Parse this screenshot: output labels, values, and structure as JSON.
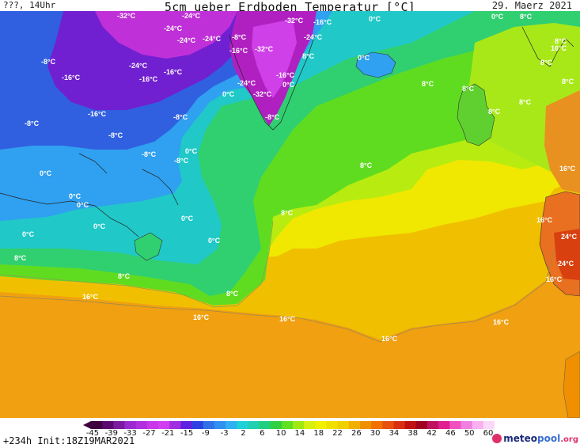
{
  "header": {
    "left": "???, 14Uhr",
    "title": "5cm ueber Erdboden Temperatur [°C]",
    "date": "29. Maerz 2021"
  },
  "footer": {
    "run": "+234h  Init:18Z19MAR2021",
    "logo_main": "meteo",
    "logo_accent": "pool",
    "logo_tld": ".org"
  },
  "colorbar": {
    "ticks": [
      "-45",
      "-39",
      "-33",
      "-27",
      "-21",
      "-15",
      "-9",
      "-3",
      "2",
      "6",
      "10",
      "14",
      "18",
      "22",
      "26",
      "30",
      "34",
      "38",
      "42",
      "46",
      "50",
      "60"
    ],
    "colors": [
      "#400040",
      "#5a0a6e",
      "#7a1a9e",
      "#9a2ad0",
      "#b030e0",
      "#c838e8",
      "#d040f0",
      "#a030e0",
      "#6020e0",
      "#3040e0",
      "#3070e8",
      "#3090f0",
      "#30b0f0",
      "#20d0d8",
      "#20d0b0",
      "#20d080",
      "#30d040",
      "#60e020",
      "#a0e810",
      "#d8f010",
      "#f0f000",
      "#f0e000",
      "#f0d000",
      "#f0b000",
      "#f09000",
      "#f07000",
      "#e85010",
      "#d83010",
      "#c01010",
      "#a00020",
      "#c01060",
      "#e02090",
      "#f050c0",
      "#f080e0",
      "#f8b0f0",
      "#fcd8f8"
    ]
  },
  "map": {
    "labels": [
      {
        "t": "-32°C"
      },
      {
        "t": "-24°C"
      },
      {
        "t": "-24°C"
      },
      {
        "t": "-24°C"
      },
      {
        "t": "-8°C"
      },
      {
        "t": "-24°C"
      },
      {
        "t": "-32°C"
      },
      {
        "t": "-16°C"
      },
      {
        "t": "0°C"
      },
      {
        "t": "0°C"
      },
      {
        "t": "8°C"
      },
      {
        "t": "-8°C"
      },
      {
        "t": "-24°C"
      },
      {
        "t": "-16°C"
      },
      {
        "t": "-16°C"
      },
      {
        "t": "-16°C"
      },
      {
        "t": "-32°C"
      },
      {
        "t": "-24°C"
      },
      {
        "t": "8°C"
      },
      {
        "t": "0°C"
      },
      {
        "t": "8°C"
      },
      {
        "t": "16°C"
      },
      {
        "t": "8°C"
      },
      {
        "t": "8°C"
      },
      {
        "t": "-16°C"
      },
      {
        "t": "-16°C"
      },
      {
        "t": "-24°C"
      },
      {
        "t": "0°C"
      },
      {
        "t": "-32°C"
      },
      {
        "t": "0°C"
      },
      {
        "t": "8°C"
      },
      {
        "t": "8°C"
      },
      {
        "t": "-8°C"
      },
      {
        "t": "-16°C"
      },
      {
        "t": "-8°C"
      },
      {
        "t": "-8°C"
      },
      {
        "t": "8°C"
      },
      {
        "t": "8°C"
      },
      {
        "t": "-8°C"
      },
      {
        "t": "0°C"
      },
      {
        "t": "-8°C"
      },
      {
        "t": "-8°C"
      },
      {
        "t": "8°C"
      },
      {
        "t": "16°C"
      },
      {
        "t": "0°C"
      },
      {
        "t": "0°C"
      },
      {
        "t": "0°C"
      },
      {
        "t": "8°C"
      },
      {
        "t": "0°C"
      },
      {
        "t": "0°C"
      },
      {
        "t": "0°C"
      },
      {
        "t": "0°C"
      },
      {
        "t": "16°C"
      },
      {
        "t": "8°C"
      },
      {
        "t": "24°C"
      },
      {
        "t": "24°C"
      },
      {
        "t": "16°C"
      },
      {
        "t": "8°C"
      },
      {
        "t": "16°C"
      },
      {
        "t": "8°C"
      },
      {
        "t": "16°C"
      },
      {
        "t": "16°C"
      },
      {
        "t": "16°C"
      },
      {
        "t": "16°C"
      }
    ]
  }
}
